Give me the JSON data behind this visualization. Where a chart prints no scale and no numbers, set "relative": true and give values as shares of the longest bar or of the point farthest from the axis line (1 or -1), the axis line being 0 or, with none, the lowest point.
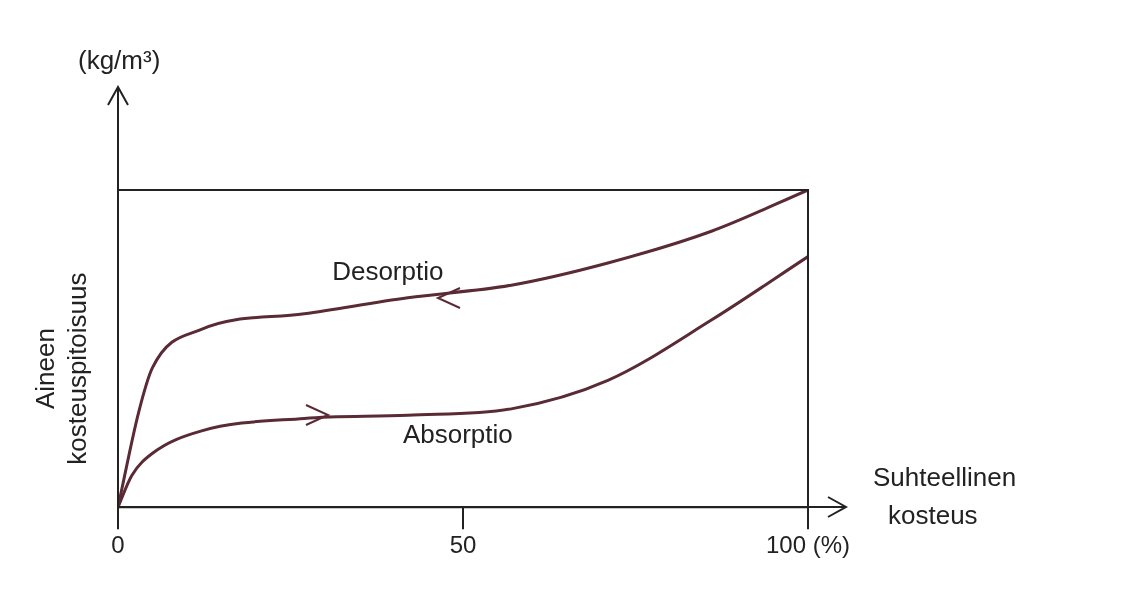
{
  "chart_data": {
    "type": "line",
    "relative": true,
    "xlabel": "Suhteellinen kosteus",
    "ylabel": "Aineen kosteuspitoisuus",
    "annotations": [
      "(kg/m³)"
    ],
    "xlim": [
      0,
      100
    ],
    "xticks": [
      0,
      50,
      {
        "value": 100,
        "label": "100 (%)"
      }
    ],
    "grid": false,
    "legend": false,
    "marker": "none",
    "line_style": "solid",
    "series": [
      {
        "name": "Desorptio",
        "color": "#5a2a35",
        "x": [
          0,
          3,
          5,
          12,
          27,
          42,
          57,
          71,
          86,
          100
        ],
        "values": [
          0,
          0.3,
          0.44,
          0.56,
          0.61,
          0.66,
          0.7,
          0.77,
          0.87,
          1
        ]
      },
      {
        "name": "Absorptio",
        "color": "#5a2a35",
        "x": [
          0,
          2,
          5,
          12,
          27,
          42,
          57,
          71,
          86,
          100
        ],
        "values": [
          0,
          0.1,
          0.17,
          0.24,
          0.28,
          0.29,
          0.31,
          0.4,
          0.59,
          0.79
        ]
      }
    ]
  }
}
